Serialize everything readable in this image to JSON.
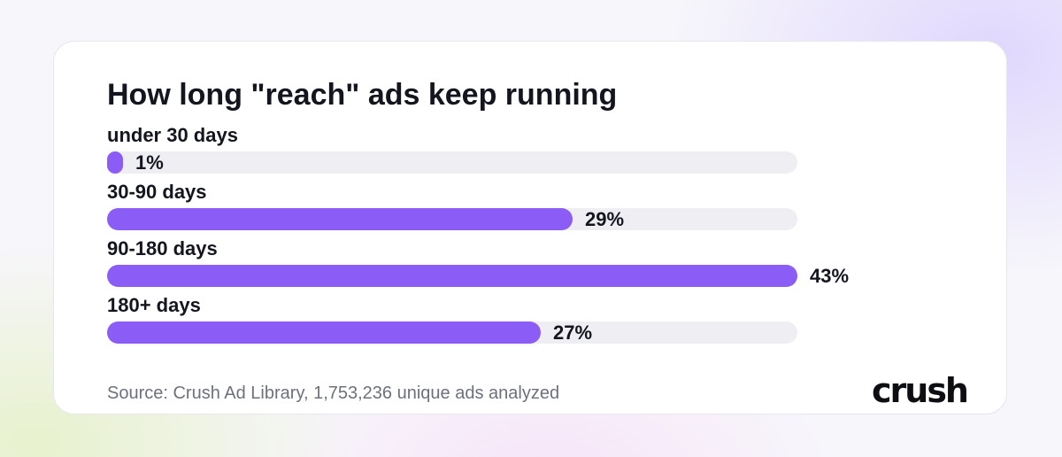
{
  "brand": {
    "logo_text": "crush",
    "accent_color": "#8b5cf6",
    "track_color": "#efeff3"
  },
  "source_text": "Source: Crush Ad Library, 1,753,236 unique ads analyzed",
  "chart_data": {
    "type": "bar",
    "orientation": "horizontal",
    "title": "How long \"reach\" ads keep running",
    "categories": [
      "under 30 days",
      "30-90 days",
      "90-180 days",
      "180+ days"
    ],
    "values": [
      1,
      29,
      43,
      27
    ],
    "value_labels": [
      "1%",
      "29%",
      "43%",
      "27%"
    ],
    "xlim": [
      0,
      43
    ],
    "grid": false,
    "legend": "none"
  }
}
